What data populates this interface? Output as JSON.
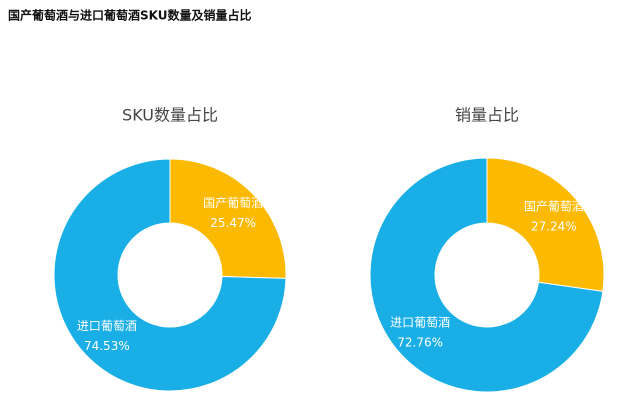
{
  "header": {
    "title": "国产葡萄酒与进口葡萄酒SKU数量及销量占比"
  },
  "chart_data": [
    {
      "type": "donut",
      "title": "SKU数量占比",
      "categories": [
        "国产葡萄酒",
        "进口葡萄酒"
      ],
      "values": [
        25.47,
        74.53
      ],
      "value_labels": [
        "25.47%",
        "74.53%"
      ],
      "colors": [
        "#fbb900",
        "#19aee6"
      ]
    },
    {
      "type": "donut",
      "title": "销量占比",
      "categories": [
        "国产葡萄酒",
        "进口葡萄酒"
      ],
      "values": [
        27.24,
        72.76
      ],
      "value_labels": [
        "27.24%",
        "72.76%"
      ],
      "colors": [
        "#fbb900",
        "#19aee6"
      ]
    }
  ]
}
